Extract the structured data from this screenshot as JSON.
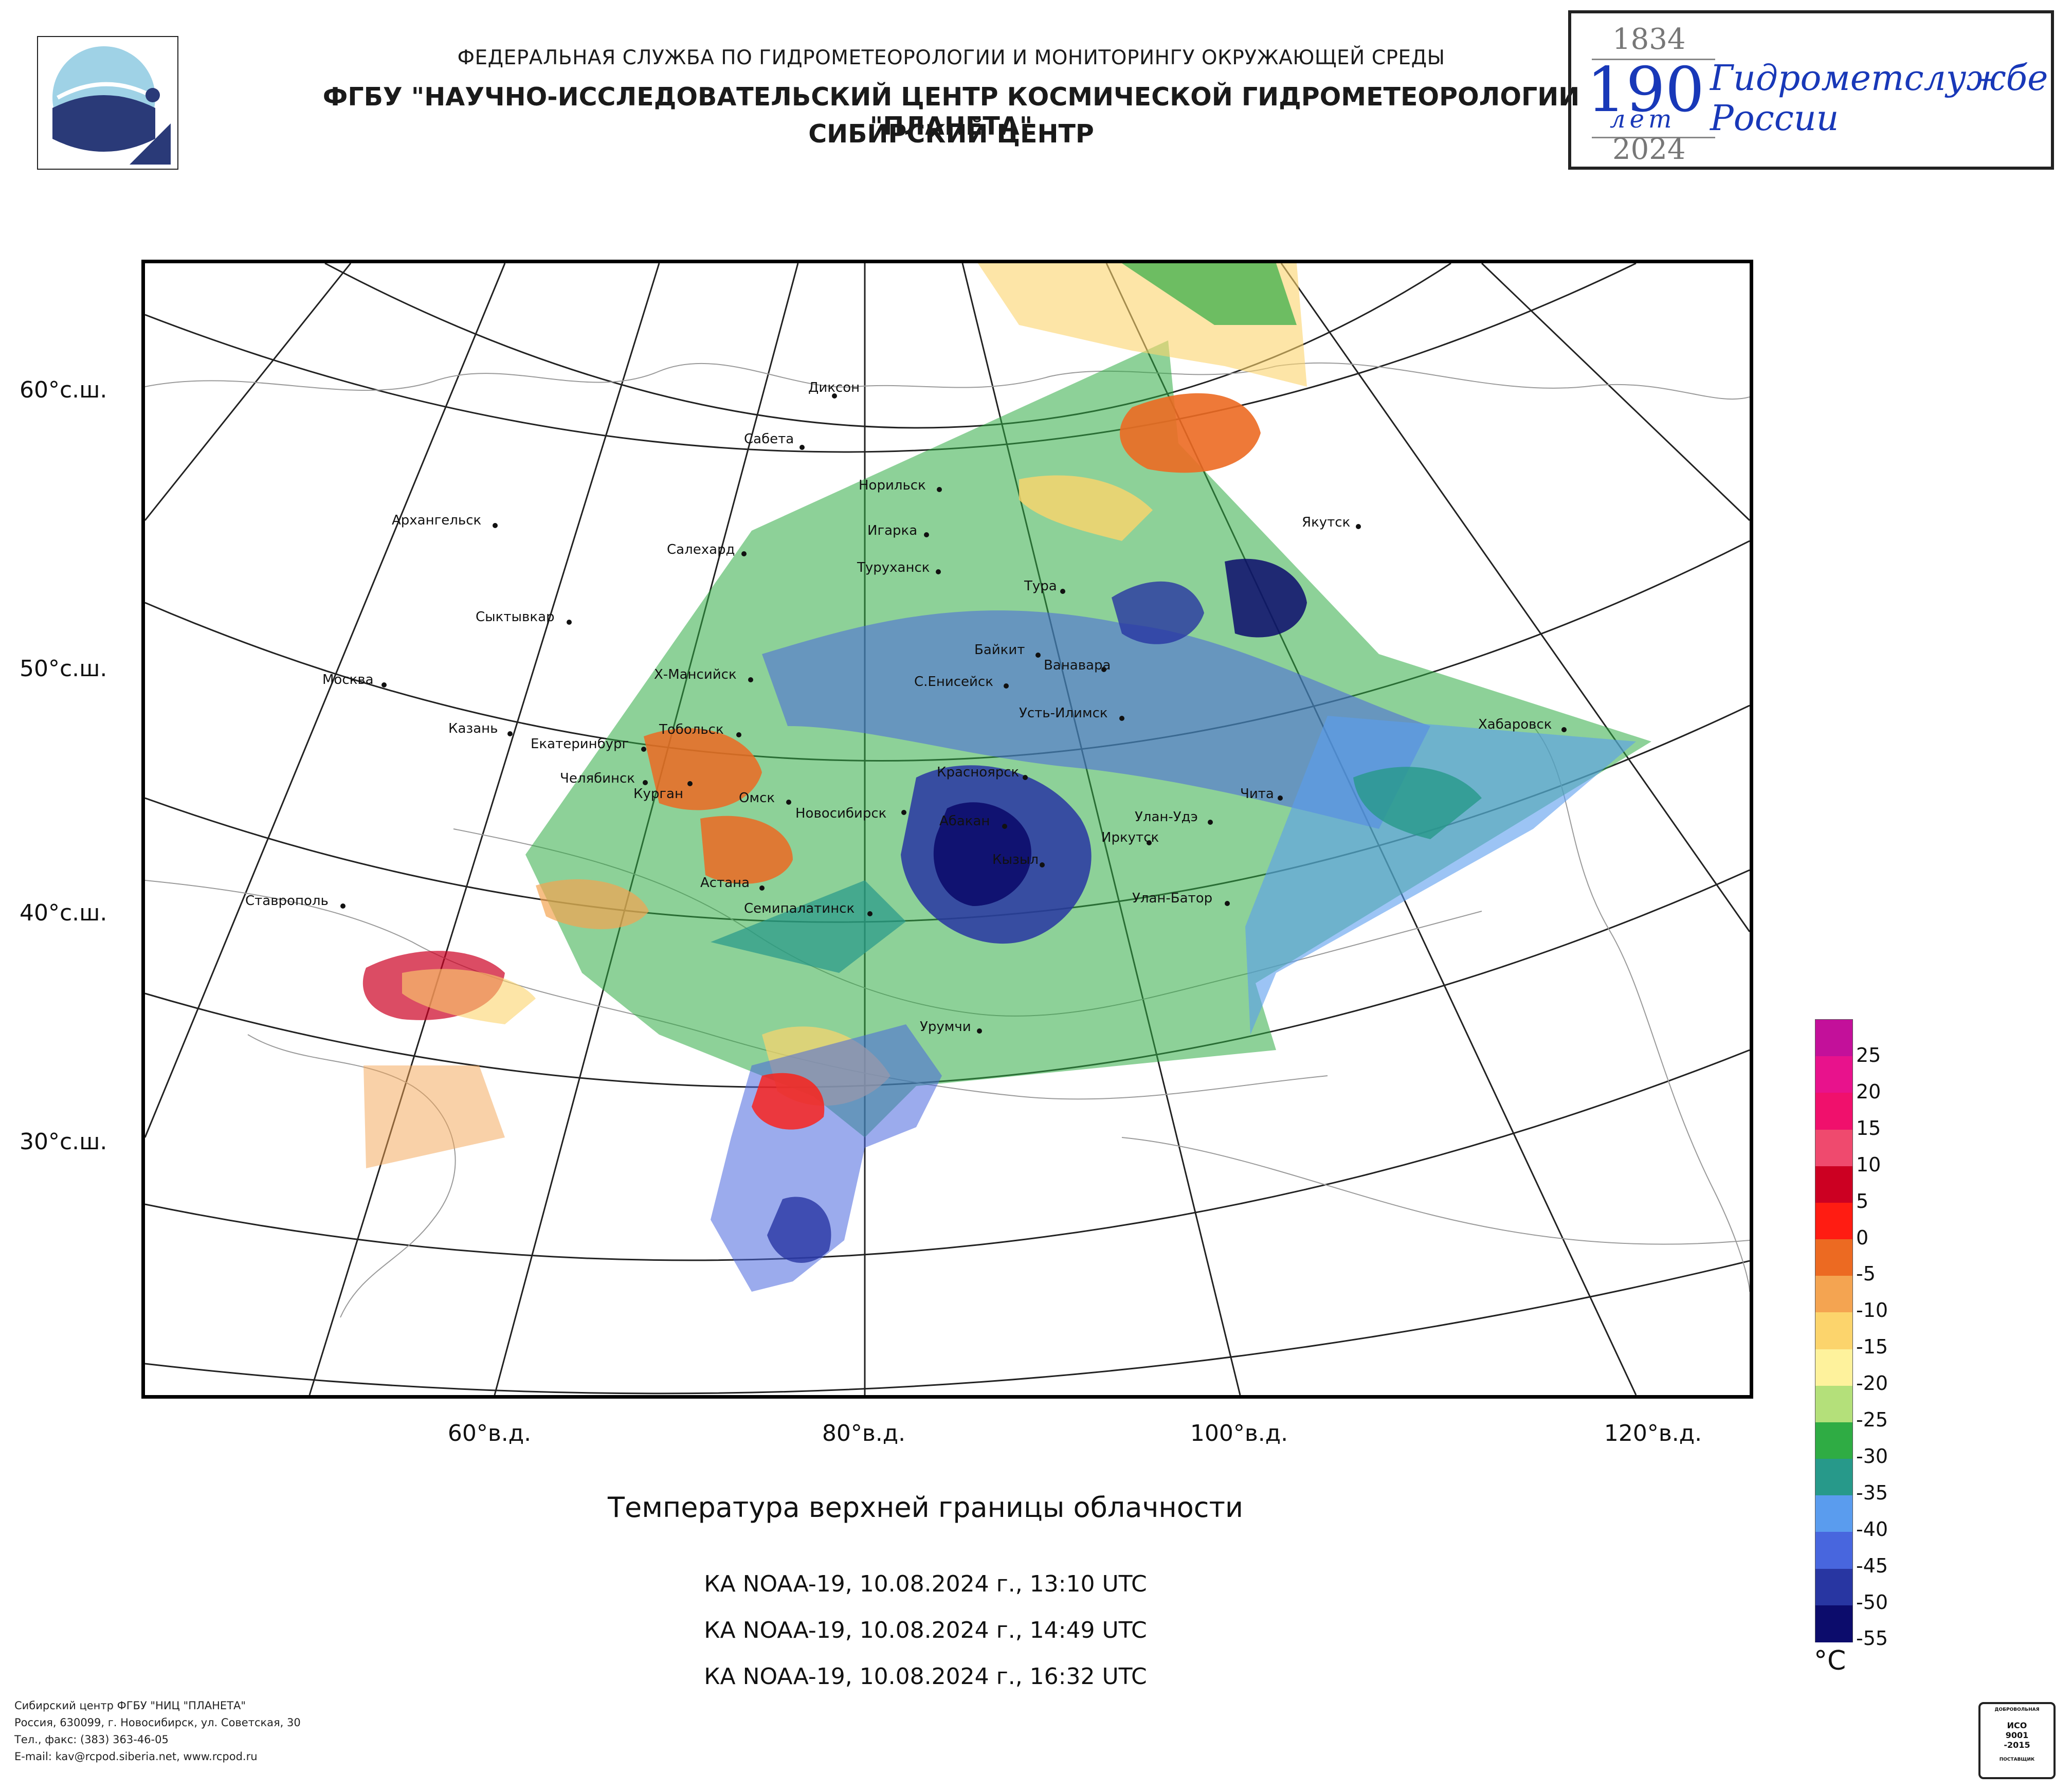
{
  "header": {
    "line1": "ФЕДЕРАЛЬНАЯ СЛУЖБА ПО ГИДРОМЕТЕОРОЛОГИИ И МОНИТОРИНГУ ОКРУЖАЮЩЕЙ СРЕДЫ",
    "line2": "ФГБУ \"НАУЧНО-ИССЛЕДОВАТЕЛЬСКИЙ ЦЕНТР КОСМИЧЕСКОЙ ГИДРОМЕТЕОРОЛОГИИ \"ПЛАНЕТА\"",
    "line3": "СИБИРСКИЙ ЦЕНТР"
  },
  "anniversary": {
    "year_start": "1834",
    "number": "190",
    "let": "лет",
    "year_end": "2024",
    "slogan_line1": "Гидрометслужбе",
    "slogan_line2": "России"
  },
  "map": {
    "lat_labels": [
      "60°с.ш.",
      "50°с.ш.",
      "40°с.ш.",
      "30°с.ш."
    ],
    "lon_labels": [
      "60°в.д.",
      "80°в.д.",
      "100°в.д.",
      "120°в.д."
    ],
    "cities": [
      {
        "name": "Диксон"
      },
      {
        "name": "Сабета"
      },
      {
        "name": "Норильск"
      },
      {
        "name": "Архангельск"
      },
      {
        "name": "Игарка"
      },
      {
        "name": "Салехард"
      },
      {
        "name": "Туруханск"
      },
      {
        "name": "Тура"
      },
      {
        "name": "Якутск"
      },
      {
        "name": "Сыктывкар"
      },
      {
        "name": "Байкит"
      },
      {
        "name": "Ванавара"
      },
      {
        "name": "Москва"
      },
      {
        "name": "Х-Мансийск"
      },
      {
        "name": "С.Енисейск"
      },
      {
        "name": "Усть-Илимск"
      },
      {
        "name": "Казань"
      },
      {
        "name": "Екатеринбург"
      },
      {
        "name": "Тобольск"
      },
      {
        "name": "Хабаровск"
      },
      {
        "name": "Челябинск"
      },
      {
        "name": "Курган"
      },
      {
        "name": "Красноярск"
      },
      {
        "name": "Чита"
      },
      {
        "name": "Омск"
      },
      {
        "name": "Новосибирск"
      },
      {
        "name": "Абакан"
      },
      {
        "name": "Улан-Удэ"
      },
      {
        "name": "Иркутск"
      },
      {
        "name": "Кызыл"
      },
      {
        "name": "Астана"
      },
      {
        "name": "Ставрополь"
      },
      {
        "name": "Семипалатинск"
      },
      {
        "name": "Улан-Батор"
      },
      {
        "name": "Урумчи"
      }
    ]
  },
  "title": "Температура верхней границы облачности",
  "passes": [
    "КА NOAA-19, 10.08.2024 г., 13:10 UTC",
    "КА NOAA-19, 10.08.2024 г., 14:49 UTC",
    "КА NOAA-19, 10.08.2024 г., 16:32 UTC"
  ],
  "legend": {
    "unit": "°C",
    "ticks": [
      "25",
      "20",
      "15",
      "10",
      "5",
      "0",
      "-5",
      "-10",
      "-15",
      "-20",
      "-25",
      "-30",
      "-35",
      "-40",
      "-45",
      "-50",
      "-55"
    ],
    "colors": [
      "#c3109a",
      "#e8128c",
      "#f0106c",
      "#ef4a6e",
      "#cc0022",
      "#ff1c12",
      "#ec6a22",
      "#f4a451",
      "#fcd46c",
      "#fef29c",
      "#b4e07a",
      "#2fac44",
      "#27998a",
      "#5a9cee",
      "#4866de",
      "#2836a2",
      "#0c0c6c"
    ]
  },
  "footer": {
    "line1": "Сибирский центр ФГБУ \"НИЦ \"ПЛАНЕТА\"",
    "line2": "Россия, 630099, г. Новосибирск, ул. Советская, 30",
    "line3": "Тел., факс: (383) 363-46-05",
    "line4": "E-mail: kav@rcpod.siberia.net, www.rcpod.ru"
  },
  "certificate": {
    "top": "ДОБРОВОЛЬНАЯ",
    "line1": "ИСО",
    "line2": "9001",
    "line3": "-2015",
    "bottom": "ПОСТАВЩИК"
  }
}
